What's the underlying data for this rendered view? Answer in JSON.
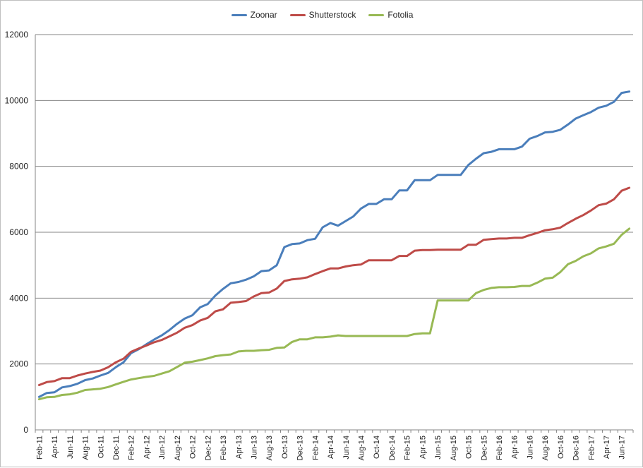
{
  "chart_data": {
    "type": "line",
    "x": [
      "Feb-11",
      "Mar-11",
      "Apr-11",
      "May-11",
      "Jun-11",
      "Jul-11",
      "Aug-11",
      "Sep-11",
      "Oct-11",
      "Nov-11",
      "Dec-11",
      "Jan-12",
      "Feb-12",
      "Mar-12",
      "Apr-12",
      "May-12",
      "Jun-12",
      "Jul-12",
      "Aug-12",
      "Sep-12",
      "Oct-12",
      "Nov-12",
      "Dec-12",
      "Jan-13",
      "Feb-13",
      "Mar-13",
      "Apr-13",
      "May-13",
      "Jun-13",
      "Jul-13",
      "Aug-13",
      "Sep-13",
      "Oct-13",
      "Nov-13",
      "Dec-13",
      "Jan-14",
      "Feb-14",
      "Mar-14",
      "Apr-14",
      "May-14",
      "Jun-14",
      "Jul-14",
      "Aug-14",
      "Sep-14",
      "Oct-14",
      "Nov-14",
      "Dec-14",
      "Jan-15",
      "Feb-15",
      "Mar-15",
      "Apr-15",
      "May-15",
      "Jun-15",
      "Jul-15",
      "Aug-15",
      "Sep-15",
      "Oct-15",
      "Nov-15",
      "Dec-15",
      "Jan-16",
      "Feb-16",
      "Mar-16",
      "Apr-16",
      "May-16",
      "Jun-16",
      "Jul-16",
      "Aug-16",
      "Sep-16",
      "Oct-16",
      "Nov-16",
      "Dec-16",
      "Jan-17",
      "Feb-17",
      "Mar-17",
      "Apr-17",
      "May-17",
      "Jun-17",
      "Jul-17"
    ],
    "x_tick_labels": [
      "Feb-11",
      "Apr-11",
      "Jun-11",
      "Aug-11",
      "Oct-11",
      "Dec-11",
      "Feb-12",
      "Apr-12",
      "Jun-12",
      "Aug-12",
      "Oct-12",
      "Dec-12",
      "Feb-13",
      "Apr-13",
      "Jun-13",
      "Aug-13",
      "Oct-13",
      "Dec-13",
      "Feb-14",
      "Apr-14",
      "Jun-14",
      "Aug-14",
      "Oct-14",
      "Dec-14",
      "Feb-15",
      "Apr-15",
      "Jun-15",
      "Aug-15",
      "Oct-15",
      "Dec-15",
      "Feb-16",
      "Apr-16",
      "Jun-16",
      "Aug-16",
      "Oct-16",
      "Dec-16",
      "Feb-17",
      "Apr-17",
      "Jun-17"
    ],
    "y_ticks": [
      "0",
      "2000",
      "4000",
      "6000",
      "8000",
      "10000",
      "12000"
    ],
    "ylim": [
      0,
      12000
    ],
    "grid": true,
    "legend_position": "top-center",
    "series": [
      {
        "name": "Zoonar",
        "color": "#4a7ebb",
        "values": [
          1000,
          1120,
          1140,
          1290,
          1330,
          1400,
          1510,
          1560,
          1650,
          1730,
          1900,
          2050,
          2330,
          2450,
          2600,
          2740,
          2870,
          3030,
          3220,
          3380,
          3480,
          3720,
          3820,
          4080,
          4280,
          4450,
          4490,
          4560,
          4660,
          4820,
          4840,
          5000,
          5550,
          5640,
          5660,
          5760,
          5800,
          6150,
          6280,
          6200,
          6340,
          6480,
          6720,
          6860,
          6860,
          7000,
          7000,
          7270,
          7270,
          7580,
          7580,
          7580,
          7740,
          7740,
          7740,
          7740,
          8040,
          8230,
          8400,
          8440,
          8520,
          8520,
          8520,
          8600,
          8840,
          8920,
          9030,
          9050,
          9110,
          9270,
          9450,
          9550,
          9650,
          9780,
          9840,
          9960,
          10230,
          10270
        ]
      },
      {
        "name": "Shutterstock",
        "color": "#be4b48",
        "values": [
          1360,
          1450,
          1480,
          1570,
          1570,
          1650,
          1710,
          1760,
          1800,
          1900,
          2050,
          2160,
          2370,
          2470,
          2560,
          2660,
          2730,
          2840,
          2950,
          3100,
          3180,
          3320,
          3400,
          3600,
          3660,
          3860,
          3880,
          3910,
          4050,
          4150,
          4170,
          4290,
          4520,
          4570,
          4590,
          4630,
          4730,
          4820,
          4900,
          4900,
          4960,
          5000,
          5020,
          5150,
          5150,
          5150,
          5150,
          5280,
          5280,
          5440,
          5460,
          5460,
          5470,
          5470,
          5470,
          5470,
          5620,
          5620,
          5770,
          5790,
          5810,
          5810,
          5830,
          5830,
          5910,
          5980,
          6060,
          6090,
          6140,
          6280,
          6410,
          6520,
          6660,
          6820,
          6870,
          7000,
          7260,
          7350
        ]
      },
      {
        "name": "Fotolia",
        "color": "#98b954",
        "values": [
          930,
          990,
          1000,
          1060,
          1080,
          1130,
          1210,
          1230,
          1250,
          1300,
          1380,
          1460,
          1530,
          1570,
          1610,
          1640,
          1710,
          1780,
          1910,
          2040,
          2070,
          2120,
          2170,
          2240,
          2270,
          2290,
          2380,
          2400,
          2400,
          2420,
          2430,
          2490,
          2500,
          2670,
          2750,
          2750,
          2810,
          2810,
          2830,
          2870,
          2850,
          2850,
          2850,
          2850,
          2850,
          2850,
          2850,
          2850,
          2850,
          2910,
          2930,
          2930,
          3930,
          3930,
          3930,
          3930,
          3930,
          4150,
          4250,
          4310,
          4330,
          4330,
          4340,
          4370,
          4370,
          4470,
          4590,
          4620,
          4790,
          5030,
          5130,
          5270,
          5360,
          5510,
          5570,
          5650,
          5920,
          6110
        ]
      }
    ]
  }
}
